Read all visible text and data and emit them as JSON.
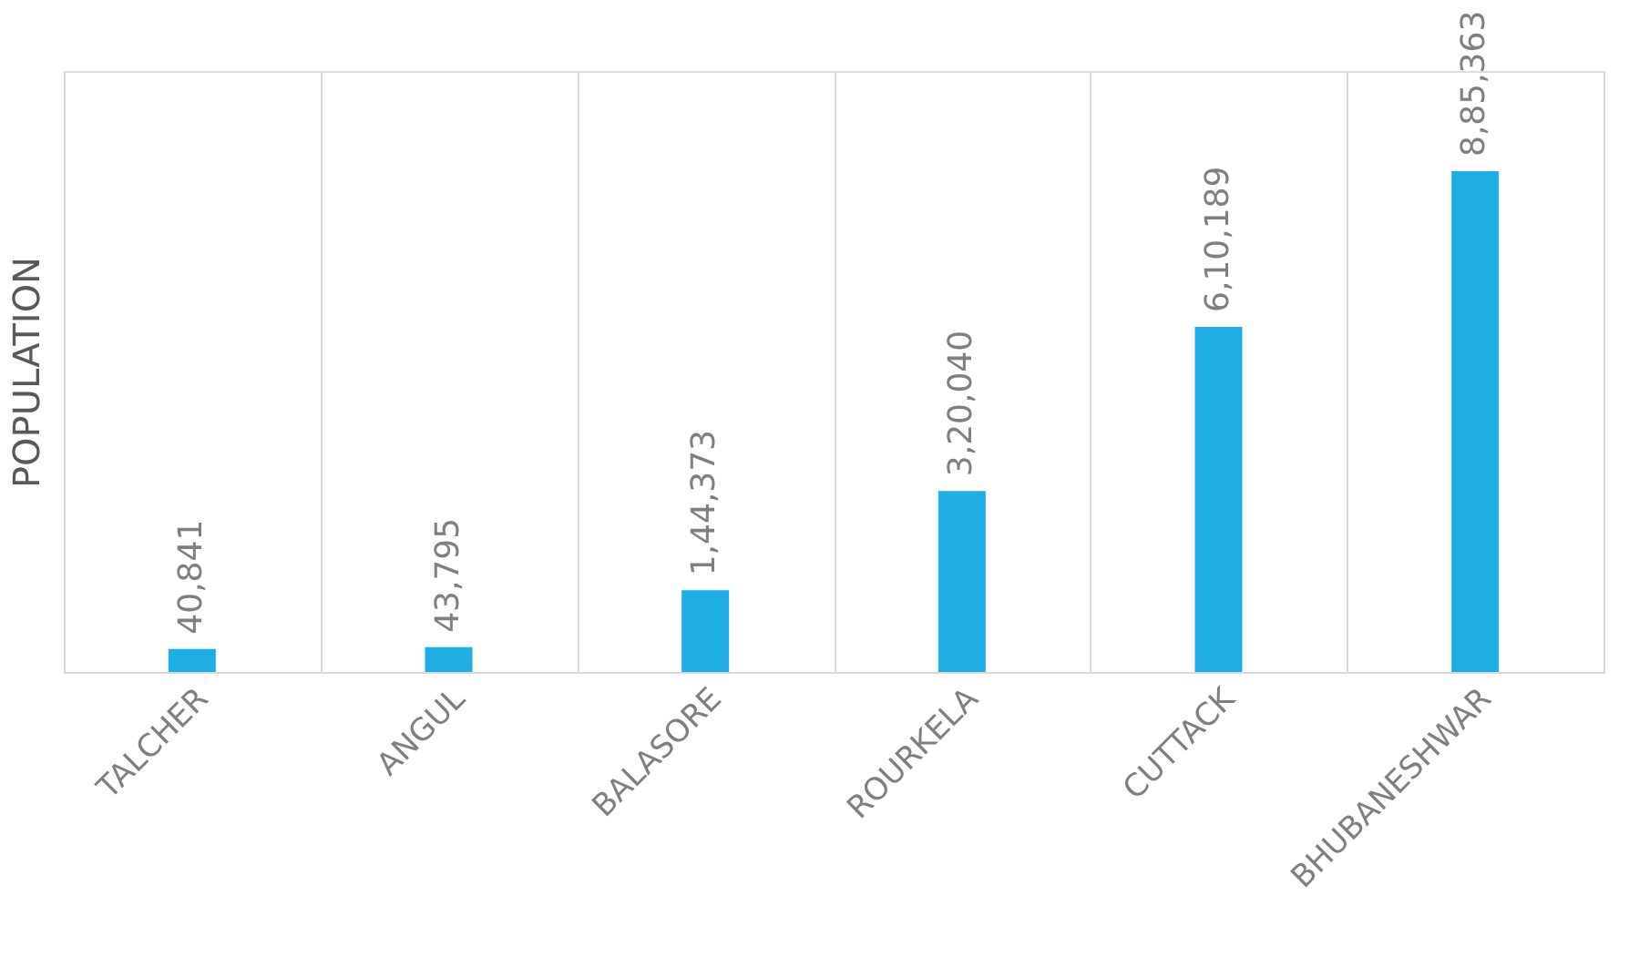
{
  "chart_data": {
    "type": "bar",
    "ylabel": "POPULATION",
    "categories": [
      "TALCHER",
      "ANGUL",
      "BALASORE",
      "ROURKELA",
      "CUTTACK",
      "BHUBANESHWAR"
    ],
    "values": [
      40841,
      43795,
      144373,
      320040,
      610189,
      885363
    ],
    "value_labels": [
      "40,841",
      "43,795",
      "1,44,373",
      "3,20,040",
      "6,10,189",
      "8,85,363"
    ],
    "color": "#1eaee4",
    "grid": "x",
    "tick_labels": "x"
  }
}
